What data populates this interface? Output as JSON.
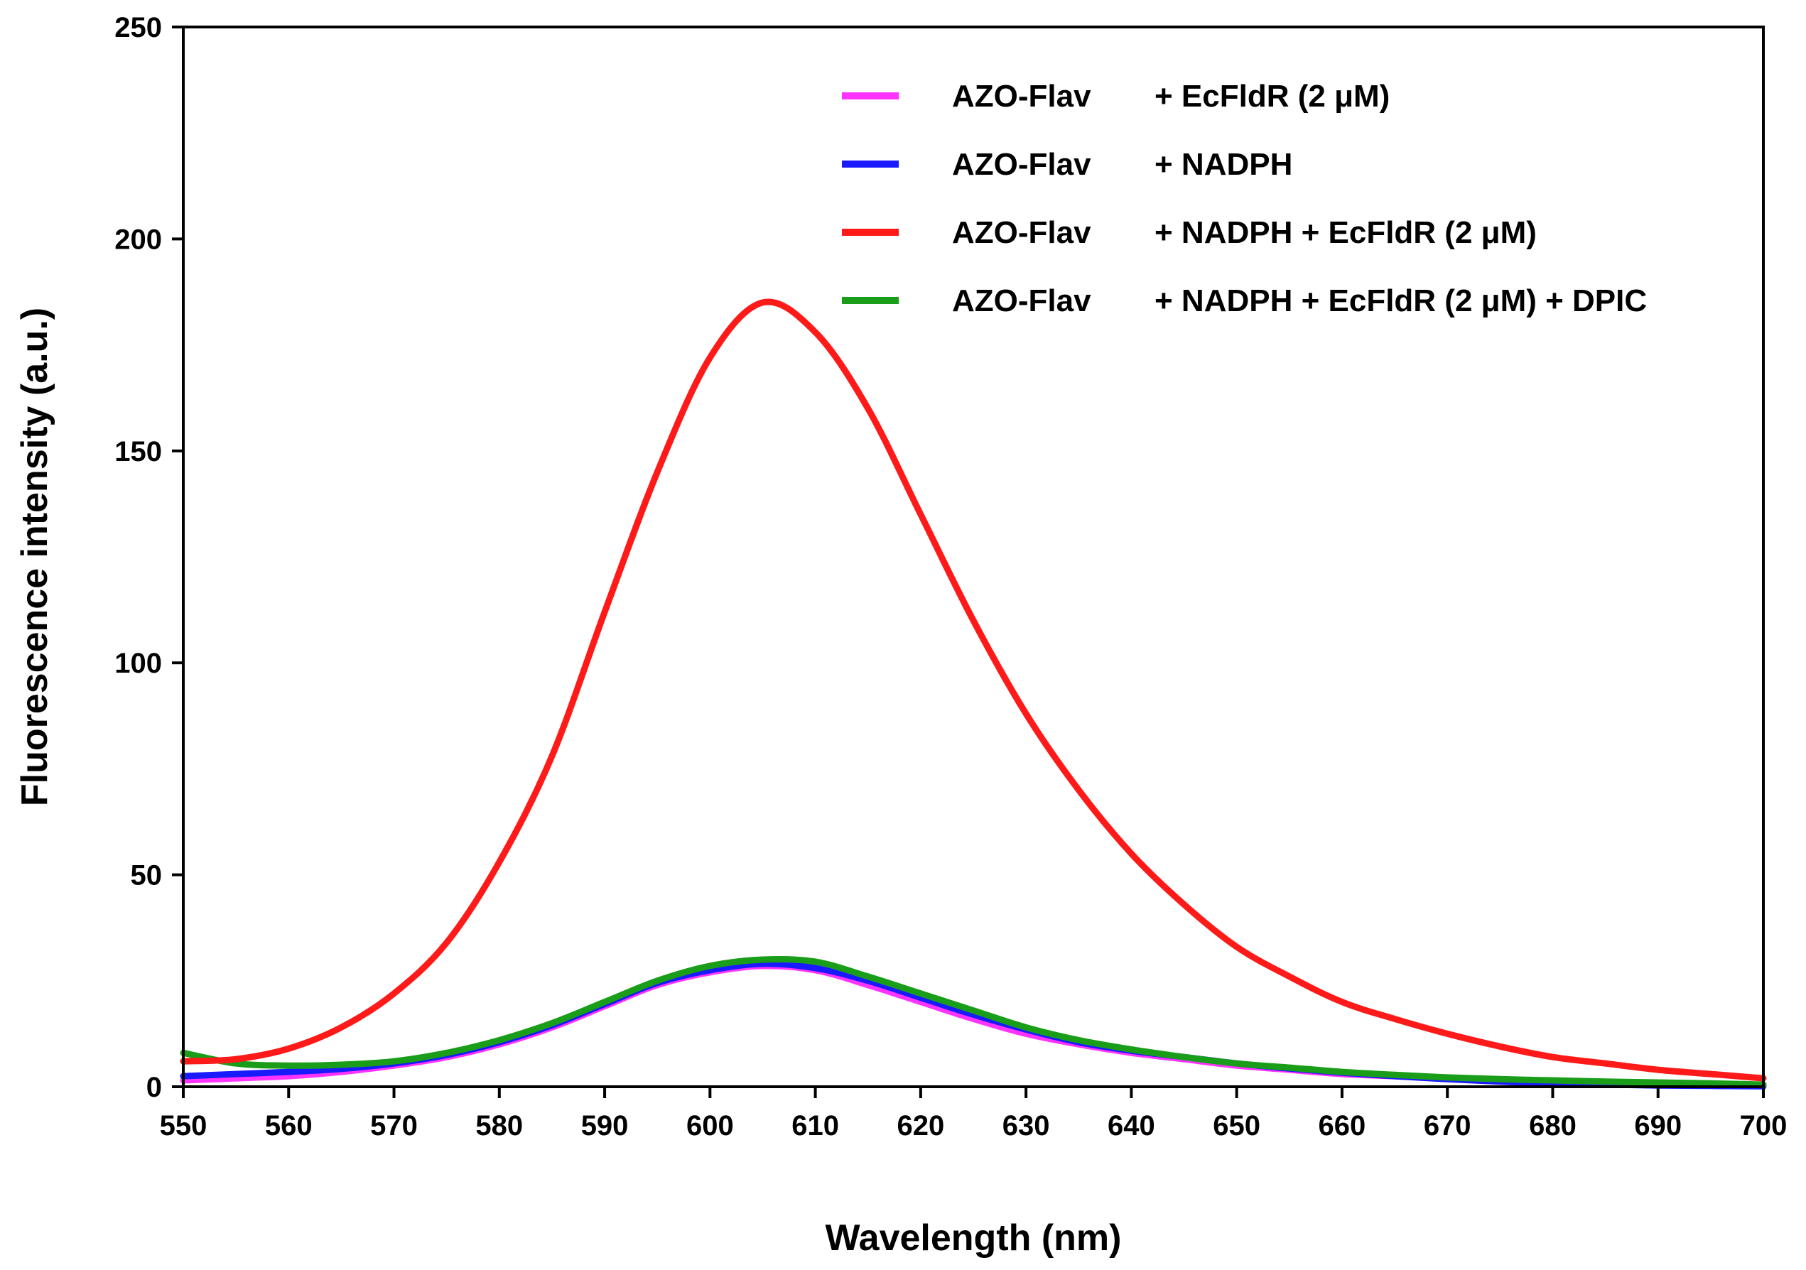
{
  "chart_data": {
    "type": "line",
    "xlabel": "Wavelength (nm)",
    "ylabel": "Fluorescence intensity (a.u.)",
    "xlim": [
      550,
      700
    ],
    "ylim": [
      0,
      250
    ],
    "xticks": [
      "550",
      "560",
      "570",
      "580",
      "590",
      "600",
      "610",
      "620",
      "630",
      "640",
      "650",
      "660",
      "670",
      "680",
      "690",
      "700"
    ],
    "yticks": [
      "0",
      "50",
      "100",
      "150",
      "200",
      "250"
    ],
    "grid": false,
    "legend_position": "top-right",
    "x": [
      550,
      555,
      560,
      565,
      570,
      575,
      580,
      585,
      590,
      595,
      600,
      605,
      610,
      615,
      620,
      625,
      630,
      635,
      640,
      645,
      650,
      655,
      660,
      665,
      670,
      675,
      680,
      685,
      690,
      695,
      700
    ],
    "series": [
      {
        "name": "AZO-Flav",
        "condition": "+ EcFldR (2 μM)",
        "color": "#ff33ff",
        "values": [
          1.5,
          2.0,
          2.5,
          3.5,
          5.0,
          7.0,
          10.0,
          14.0,
          19.0,
          24.0,
          27.0,
          28.5,
          27.5,
          24.0,
          20.0,
          16.0,
          12.5,
          10.0,
          8.0,
          6.5,
          5.0,
          4.0,
          3.0,
          2.5,
          2.0,
          1.5,
          1.2,
          1.0,
          0.8,
          0.5,
          0.5
        ]
      },
      {
        "name": "AZO-Flav",
        "condition": "+ NADPH",
        "color": "#1a1aff",
        "values": [
          2.5,
          3.0,
          3.5,
          4.2,
          5.5,
          7.5,
          10.5,
          14.5,
          19.5,
          24.5,
          27.5,
          29.0,
          28.0,
          25.0,
          21.0,
          17.0,
          13.5,
          10.5,
          8.5,
          7.0,
          5.5,
          4.3,
          3.3,
          2.5,
          1.8,
          1.2,
          0.8,
          0.5,
          0.3,
          0.2,
          0.1
        ]
      },
      {
        "name": "AZO-Flav",
        "condition": "+ NADPH + EcFldR (2 μM)",
        "color": "#ff1a1a",
        "values": [
          6.0,
          6.5,
          9.0,
          14.0,
          22.0,
          34.0,
          53.0,
          78.0,
          112.0,
          145.0,
          172.0,
          185.0,
          178.0,
          160.0,
          135.0,
          110.0,
          88.0,
          70.0,
          55.0,
          43.0,
          33.0,
          26.0,
          20.0,
          16.0,
          12.5,
          9.5,
          7.0,
          5.5,
          4.0,
          3.0,
          2.0
        ]
      },
      {
        "name": "AZO-Flav",
        "condition": "+ NADPH + EcFldR (2 μM) + DPIC",
        "color": "#1a9e1a",
        "values": [
          8.0,
          5.5,
          5.0,
          5.2,
          6.0,
          8.0,
          11.0,
          15.0,
          20.0,
          25.0,
          28.5,
          30.0,
          29.5,
          26.0,
          22.0,
          18.0,
          14.0,
          11.0,
          8.8,
          7.0,
          5.5,
          4.5,
          3.5,
          2.8,
          2.2,
          1.8,
          1.5,
          1.2,
          1.0,
          0.8,
          0.5
        ]
      }
    ]
  }
}
